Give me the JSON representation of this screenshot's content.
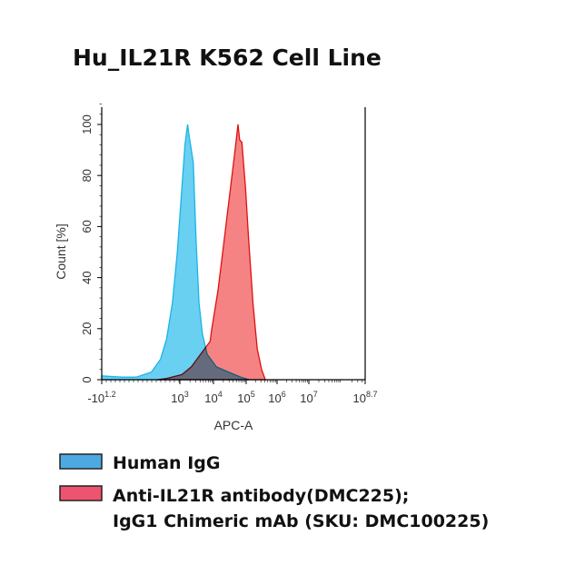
{
  "chart_data": {
    "type": "area",
    "title": "Hu_IL21R K562 Cell Line",
    "xlabel": "APC-A",
    "ylabel": "Count [%]",
    "xscale": "biexponential (log10 decades)",
    "xlim": [
      0.58,
      8.7
    ],
    "ylim": [
      0,
      100
    ],
    "x_ticks": [
      {
        "label": "-10",
        "exp": "1.2",
        "pos": 0.58
      },
      {
        "label": "10",
        "exp": "3",
        "pos": 3
      },
      {
        "label": "10",
        "exp": "4",
        "pos": 4
      },
      {
        "label": "10",
        "exp": "5",
        "pos": 5
      },
      {
        "label": "10",
        "exp": "6",
        "pos": 6
      },
      {
        "label": "10",
        "exp": "7",
        "pos": 7
      },
      {
        "label": "10",
        "exp": "8.7",
        "pos": 8.7
      }
    ],
    "y_ticks": [
      "0",
      "20",
      "40",
      "60",
      "80",
      "100"
    ],
    "grid": false,
    "legend_position": "bottom",
    "series": [
      {
        "name": "Human IgG",
        "color": "#4fc8ee",
        "line": "#1ab4e6",
        "swatch": "#4ea9e0",
        "x": [
          0.58,
          1.2,
          1.65,
          2.12,
          2.4,
          2.59,
          2.77,
          2.92,
          3.06,
          3.15,
          3.23,
          3.28,
          3.32,
          3.4,
          3.48,
          3.57,
          3.67,
          3.81,
          4.09,
          4.46,
          4.84,
          5.1
        ],
        "y": [
          1.5,
          1,
          1,
          3,
          8,
          16,
          30,
          50,
          75,
          92,
          100,
          95,
          92,
          85,
          55,
          30,
          18,
          10,
          5,
          3,
          1,
          0
        ]
      },
      {
        "name": "Anti-IL21R antibody(DMC225);",
        "name_line2": "IgG1 Chimeric mAb (SKU: DMC100225)",
        "color": "#f25a5a",
        "line": "#e01010",
        "swatch": "#ec5470",
        "x": [
          2.3,
          2.59,
          3.06,
          3.34,
          3.62,
          3.9,
          3.95,
          4.14,
          4.33,
          4.52,
          4.66,
          4.75,
          4.8,
          4.87,
          4.98,
          5.08,
          5.22,
          5.36,
          5.5,
          5.62
        ],
        "y": [
          0,
          0.5,
          2,
          5,
          10,
          15,
          20,
          35,
          55,
          75,
          90,
          100,
          94,
          93,
          75,
          55,
          30,
          12,
          4,
          0
        ]
      }
    ]
  }
}
